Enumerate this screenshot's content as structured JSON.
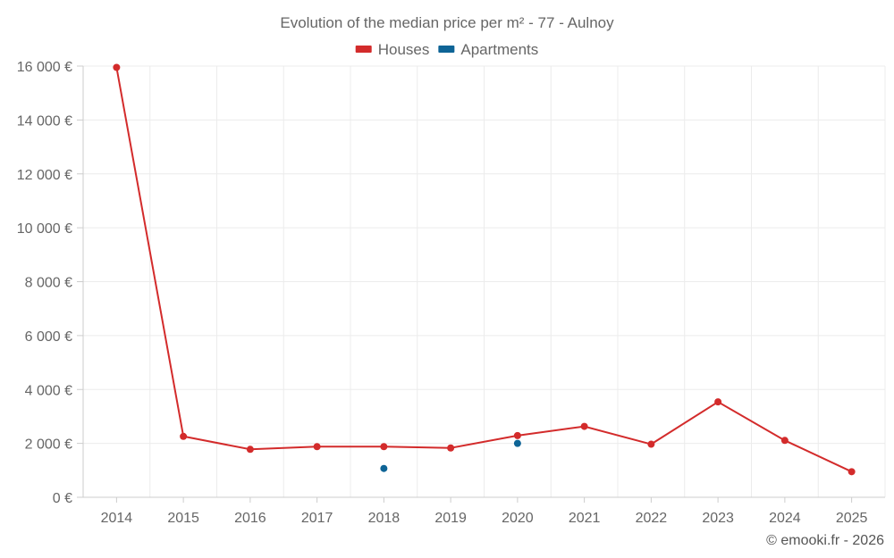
{
  "chart_data": {
    "type": "line",
    "title": "Evolution of the median price per m² - 77 - Aulnoy",
    "categories": [
      "2014",
      "2015",
      "2016",
      "2017",
      "2018",
      "2019",
      "2020",
      "2021",
      "2022",
      "2023",
      "2024",
      "2025"
    ],
    "series": [
      {
        "name": "Houses",
        "color": "#d32b2b",
        "values": [
          15950,
          2260,
          1780,
          1880,
          1880,
          1830,
          2290,
          2630,
          1970,
          3540,
          2110,
          950
        ]
      },
      {
        "name": "Apartments",
        "color": "#0e6496",
        "values": [
          null,
          null,
          null,
          null,
          1070,
          null,
          2000,
          null,
          null,
          null,
          null,
          null
        ]
      }
    ],
    "ylim": [
      0,
      16000
    ],
    "yticks": [
      0,
      2000,
      4000,
      6000,
      8000,
      10000,
      12000,
      14000,
      16000
    ],
    "ytick_labels": [
      "0 €",
      "2 000 €",
      "4 000 €",
      "6 000 €",
      "8 000 €",
      "10 000 €",
      "12 000 €",
      "14 000 €",
      "16 000 €"
    ],
    "xlabel": "",
    "ylabel": "",
    "grid": true,
    "legend_position": "top-center"
  },
  "credit": "© emooki.fr - 2026"
}
